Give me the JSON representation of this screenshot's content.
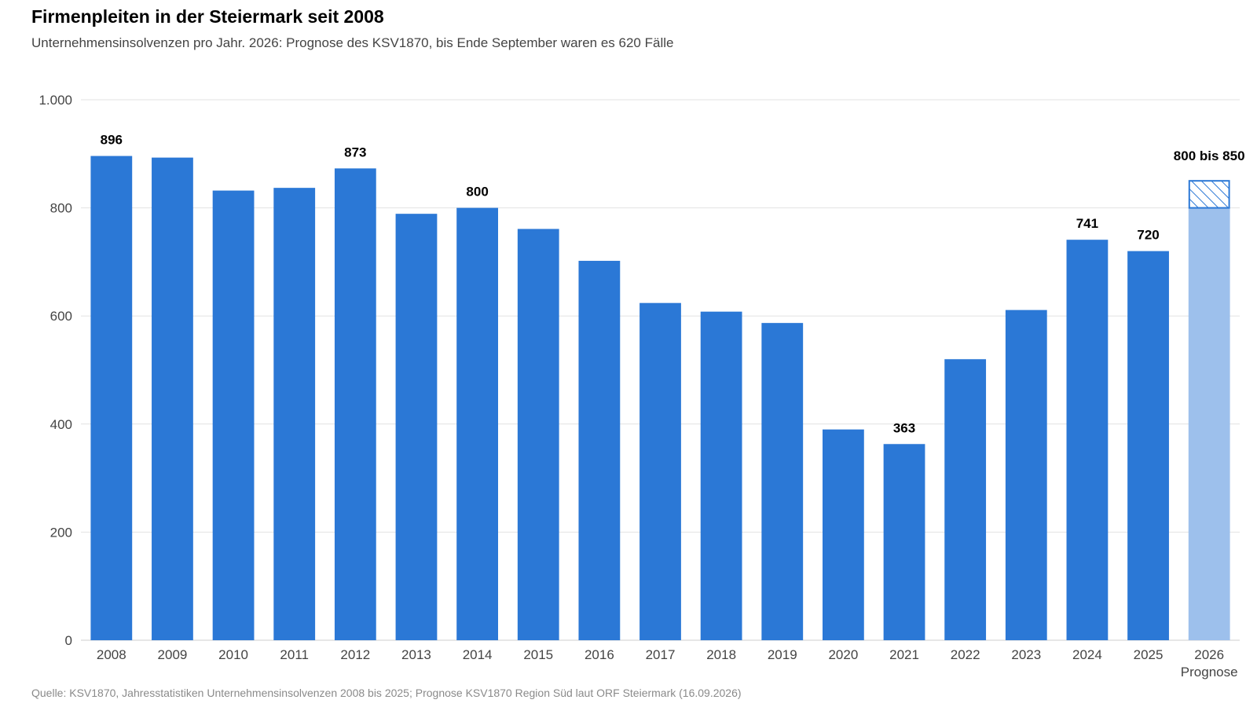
{
  "title": "Firmenpleiten in der Steiermark seit 2008",
  "subtitle": "Unternehmensinsolvenzen pro Jahr. 2026: Prognose des KSV1870, bis Ende September waren es 620 Fälle",
  "source": "Quelle: KSV1870, Jahresstatistiken Unternehmensinsolvenzen 2008 bis 2025; Prognose KSV1870 Region Süd laut ORF Steiermark (16.09.2026)",
  "colors": {
    "bar": "#2b78d6",
    "forecast_bar": "#9dc0ec",
    "forecast_range": "#2b78d6",
    "grid": "#e2e2e2"
  },
  "chart_data": {
    "type": "bar",
    "categories": [
      "2008",
      "2009",
      "2010",
      "2011",
      "2012",
      "2013",
      "2014",
      "2015",
      "2016",
      "2017",
      "2018",
      "2019",
      "2020",
      "2021",
      "2022",
      "2023",
      "2024",
      "2025",
      "2026"
    ],
    "category_sublabels": {
      "2026": "Prognose"
    },
    "values": [
      896,
      893,
      832,
      837,
      873,
      789,
      800,
      761,
      702,
      624,
      608,
      587,
      390,
      363,
      520,
      611,
      741,
      720,
      800
    ],
    "forecast": {
      "category": "2026",
      "low": 800,
      "high": 850,
      "label": "800 bis 850"
    },
    "data_labels": {
      "2008": "896",
      "2012": "873",
      "2014": "800",
      "2021": "363",
      "2024": "741",
      "2025": "720"
    },
    "ylim": [
      0,
      1000
    ],
    "yticks": [
      0,
      200,
      400,
      600,
      800,
      1000
    ],
    "ytick_labels": [
      "0",
      "200",
      "400",
      "600",
      "800",
      "1.000"
    ],
    "grid": true,
    "xlabel": "",
    "ylabel": ""
  }
}
